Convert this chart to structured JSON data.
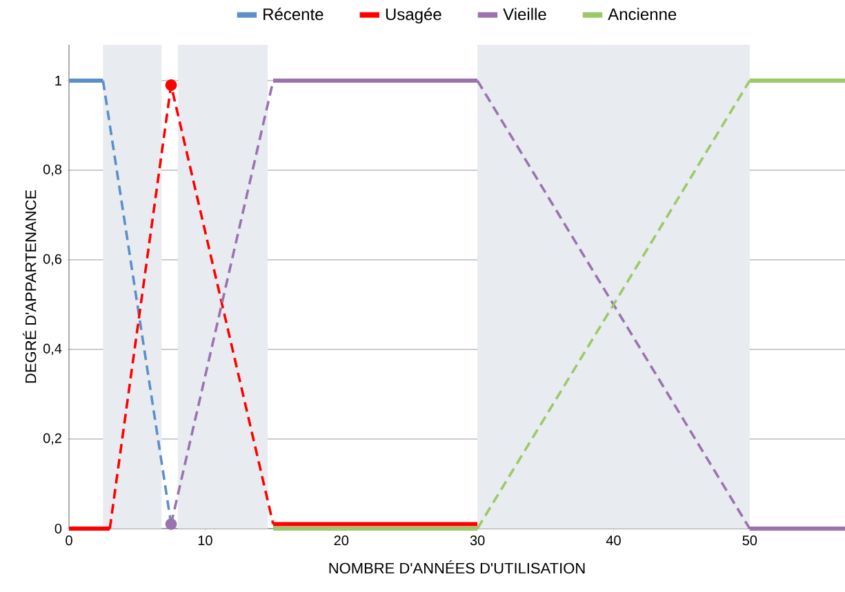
{
  "chart_data": {
    "type": "line",
    "xlabel": "NOMBRE D'ANNÉES D'UTILISATION",
    "ylabel": "DEGRÉ D'APPARTENANCE",
    "xlim": [
      0,
      57
    ],
    "ylim": [
      0,
      1.08
    ],
    "xticks": [
      0,
      10,
      20,
      30,
      40,
      50
    ],
    "yticks": [
      0,
      {
        "value": 0.2,
        "label": "0,2"
      },
      {
        "value": 0.4,
        "label": "0,4"
      },
      {
        "value": 0.6,
        "label": "0,6"
      },
      {
        "value": 0.8,
        "label": "0,8"
      },
      1
    ],
    "grid": "y",
    "legend": "top",
    "bands": [
      {
        "axis": "x",
        "from": 2.5,
        "to": 6.8,
        "color": "#e8ebf0"
      },
      {
        "axis": "x",
        "from": 8,
        "to": 14.6,
        "color": "#e8ebf0"
      },
      {
        "axis": "x",
        "from": 30,
        "to": 50,
        "color": "#e8ebf0"
      }
    ],
    "series": [
      {
        "name": "Récente",
        "color": "#5b8fc9",
        "line_style": "solid",
        "x": [
          0,
          2.5
        ],
        "values": [
          1,
          1
        ]
      },
      {
        "color": "#5b8fc9",
        "line_style": "dashed",
        "x": [
          2.5,
          7.5
        ],
        "values": [
          1,
          0.01
        ]
      },
      {
        "name": "Usagée",
        "color": "#ff0000",
        "line_style": "solid",
        "x": [
          0,
          3
        ],
        "values": [
          0,
          0
        ]
      },
      {
        "color": "#ff0000",
        "line_style": "dashed",
        "x": [
          3,
          7.5,
          15
        ],
        "values": [
          0,
          0.99,
          0.01
        ]
      },
      {
        "name": "Vieille",
        "color": "#9b72b0",
        "line_style": "dashed",
        "x": [
          7.5,
          15
        ],
        "values": [
          0.01,
          1
        ]
      },
      {
        "color": "#9b72b0",
        "line_style": "solid",
        "x": [
          15,
          30
        ],
        "values": [
          1,
          1
        ]
      },
      {
        "color": "#9b72b0",
        "line_style": "dashed",
        "x": [
          30,
          50
        ],
        "values": [
          1,
          0
        ]
      },
      {
        "color": "#9b72b0",
        "line_style": "solid",
        "x": [
          50,
          57
        ],
        "values": [
          0,
          0
        ]
      },
      {
        "name": "Ancienne",
        "color": "#9bc96a",
        "line_style": "solid",
        "x": [
          15,
          30
        ],
        "values": [
          0,
          0
        ]
      },
      {
        "color": "#ff0000",
        "line_style": "solid",
        "x": [
          15,
          30
        ],
        "values": [
          0.01,
          0.01
        ]
      },
      {
        "color": "#9bc96a",
        "line_style": "dashed",
        "x": [
          30,
          50
        ],
        "values": [
          0,
          1
        ]
      },
      {
        "color": "#9bc96a",
        "line_style": "solid",
        "x": [
          50,
          57
        ],
        "values": [
          1,
          1
        ]
      },
      {
        "type": "scatter",
        "color": "#ff0000",
        "marker": "circle",
        "x": [
          7.5
        ],
        "values": [
          0.99
        ]
      },
      {
        "type": "scatter",
        "color": "#9b72b0",
        "marker": "circle",
        "x": [
          7.5
        ],
        "values": [
          0.01
        ]
      }
    ]
  }
}
